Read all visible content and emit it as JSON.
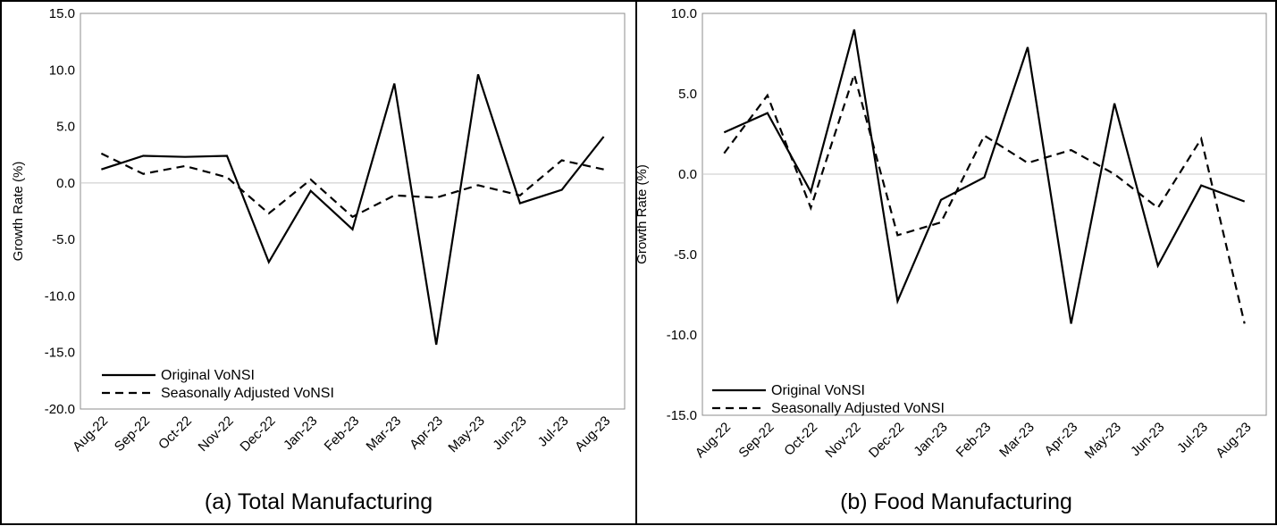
{
  "chart_data": [
    {
      "type": "line",
      "title": "",
      "caption": "(a)  Total Manufacturing",
      "xlabel": "",
      "ylabel": "Growth Rate (%)",
      "ylim": [
        -20.0,
        15.0
      ],
      "yticks": [
        "15.0",
        "10.0",
        "5.0",
        "0.0",
        "-5.0",
        "-10.0",
        "-15.0",
        "-20.0"
      ],
      "categories": [
        "Aug-22",
        "Sep-22",
        "Oct-22",
        "Nov-22",
        "Dec-22",
        "Jan-23",
        "Feb-23",
        "Mar-23",
        "Apr-23",
        "May-23",
        "Jun-23",
        "Jul-23",
        "Aug-23"
      ],
      "series": [
        {
          "name": "Original VoNSI",
          "style": "solid",
          "color": "#000000",
          "values": [
            1.2,
            2.4,
            2.3,
            2.4,
            -7.0,
            -0.7,
            -4.1,
            8.8,
            -14.3,
            9.6,
            -1.8,
            -0.6,
            4.1
          ]
        },
        {
          "name": "Seasonally Adjusted VoNSI",
          "style": "dashed",
          "color": "#000000",
          "values": [
            2.6,
            0.8,
            1.5,
            0.5,
            -2.7,
            0.3,
            -3.0,
            -1.1,
            -1.3,
            -0.2,
            -1.1,
            2.0,
            1.2
          ]
        }
      ],
      "grid": false,
      "legend_position": "bottom-left"
    },
    {
      "type": "line",
      "title": "",
      "caption": "(b)  Food Manufacturing",
      "xlabel": "",
      "ylabel": "Growth Rate (%)",
      "ylim": [
        -15.0,
        10.0
      ],
      "yticks": [
        "10.0",
        "5.0",
        "0.0",
        "-5.0",
        "-10.0",
        "-15.0"
      ],
      "categories": [
        "Aug-22",
        "Sep-22",
        "Oct-22",
        "Nov-22",
        "Dec-22",
        "Jan-23",
        "Feb-23",
        "Mar-23",
        "Apr-23",
        "May-23",
        "Jun-23",
        "Jul-23",
        "Aug-23"
      ],
      "series": [
        {
          "name": "Original VoNSI",
          "style": "solid",
          "color": "#000000",
          "values": [
            2.6,
            3.8,
            -1.1,
            9.0,
            -7.9,
            -1.6,
            -0.2,
            7.9,
            -9.3,
            4.4,
            -5.7,
            -0.7,
            -1.7
          ]
        },
        {
          "name": "Seasonally Adjusted VoNSI",
          "style": "dashed",
          "color": "#000000",
          "values": [
            1.3,
            4.9,
            -2.1,
            6.2,
            -3.8,
            -3.0,
            2.4,
            0.7,
            1.5,
            0.0,
            -2.1,
            2.2,
            -9.3
          ]
        }
      ],
      "grid": false,
      "legend_position": "bottom-left"
    }
  ]
}
